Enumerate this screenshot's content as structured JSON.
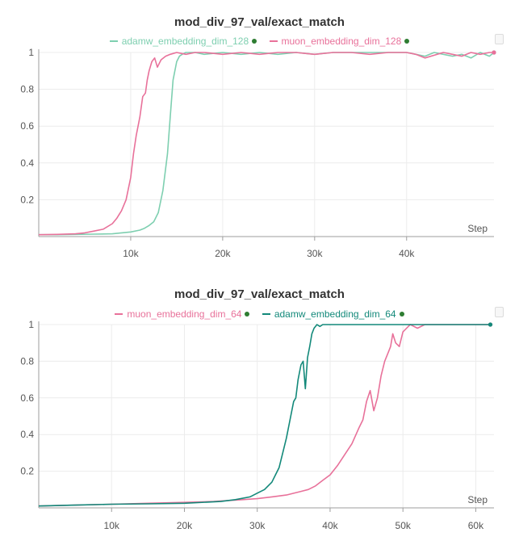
{
  "chart_data": [
    {
      "type": "line",
      "title": "mod_div_97_val/exact_match",
      "xlabel": "Step",
      "ylabel": "",
      "xlim": [
        0,
        49500
      ],
      "ylim": [
        0,
        1
      ],
      "x_ticks": [
        "10k",
        "20k",
        "30k",
        "40k"
      ],
      "y_ticks": [
        "0.2",
        "0.4",
        "0.6",
        "0.8",
        "1"
      ],
      "legend_position": "top-center",
      "series": [
        {
          "name": "adamw_embedding_dim_128",
          "color": "#7ecfb0",
          "x": [
            0,
            2000,
            4000,
            6000,
            8000,
            9000,
            10000,
            11000,
            11500,
            12000,
            12500,
            13000,
            13500,
            14000,
            14300,
            14600,
            15000,
            15300,
            15600,
            16000,
            17000,
            18000,
            20000,
            22000,
            24000,
            26000,
            28000,
            30000,
            32000,
            34000,
            36000,
            38000,
            40000,
            41000,
            42000,
            43000,
            44000,
            45000,
            46000,
            47000,
            48000,
            49000,
            49500
          ],
          "y": [
            0.01,
            0.01,
            0.012,
            0.013,
            0.015,
            0.02,
            0.025,
            0.035,
            0.045,
            0.06,
            0.08,
            0.13,
            0.25,
            0.45,
            0.65,
            0.85,
            0.95,
            0.98,
            0.99,
            1.0,
            1.0,
            0.99,
            1.0,
            0.99,
            1.0,
            0.99,
            1.0,
            0.99,
            1.0,
            1.0,
            1.0,
            1.0,
            1.0,
            0.99,
            0.98,
            1.0,
            0.99,
            0.98,
            0.99,
            0.97,
            1.0,
            0.98,
            1.0
          ]
        },
        {
          "name": "muon_embedding_dim_128",
          "color": "#e8719a",
          "x": [
            0,
            2000,
            4000,
            5000,
            6000,
            7000,
            8000,
            8500,
            9000,
            9500,
            10000,
            10300,
            10600,
            11000,
            11300,
            11600,
            11800,
            12000,
            12300,
            12600,
            12900,
            13300,
            13800,
            14300,
            15000,
            16000,
            17000,
            18000,
            20000,
            22000,
            24000,
            26000,
            28000,
            30000,
            32000,
            34000,
            36000,
            38000,
            40000,
            41000,
            42000,
            44000,
            45000,
            46000,
            47000,
            48000,
            49000,
            49500
          ],
          "y": [
            0.01,
            0.012,
            0.015,
            0.02,
            0.03,
            0.04,
            0.07,
            0.1,
            0.14,
            0.2,
            0.32,
            0.45,
            0.55,
            0.65,
            0.76,
            0.78,
            0.85,
            0.9,
            0.95,
            0.97,
            0.92,
            0.96,
            0.98,
            0.99,
            1.0,
            0.99,
            1.0,
            1.0,
            0.99,
            1.0,
            0.99,
            1.0,
            1.0,
            0.99,
            1.0,
            1.0,
            0.99,
            1.0,
            1.0,
            0.99,
            0.97,
            1.0,
            0.99,
            0.98,
            1.0,
            0.99,
            1.0,
            1.0
          ]
        }
      ]
    },
    {
      "type": "line",
      "title": "mod_div_97_val/exact_match",
      "xlabel": "Step",
      "ylabel": "",
      "xlim": [
        0,
        62500
      ],
      "ylim": [
        0,
        1
      ],
      "x_ticks": [
        "10k",
        "20k",
        "30k",
        "40k",
        "50k",
        "60k"
      ],
      "y_ticks": [
        "0.2",
        "0.4",
        "0.6",
        "0.8",
        "1"
      ],
      "legend_position": "top-center",
      "series": [
        {
          "name": "muon_embedding_dim_64",
          "color": "#e8719a",
          "x": [
            0,
            5000,
            10000,
            15000,
            20000,
            24000,
            28000,
            30000,
            32000,
            34000,
            36000,
            37000,
            38000,
            39000,
            40000,
            41000,
            42000,
            43000,
            44000,
            44500,
            45000,
            45500,
            46000,
            46500,
            47000,
            47500,
            48000,
            48300,
            48600,
            49000,
            49500,
            50000,
            50500,
            51000,
            52000,
            53000,
            54000,
            56000,
            58000,
            60000,
            62000
          ],
          "y": [
            0.01,
            0.015,
            0.02,
            0.025,
            0.03,
            0.035,
            0.045,
            0.05,
            0.06,
            0.07,
            0.09,
            0.1,
            0.12,
            0.15,
            0.18,
            0.23,
            0.29,
            0.35,
            0.44,
            0.48,
            0.58,
            0.64,
            0.53,
            0.6,
            0.72,
            0.8,
            0.85,
            0.88,
            0.95,
            0.9,
            0.88,
            0.96,
            0.98,
            1.0,
            0.98,
            1.0,
            1.0,
            1.0,
            1.0,
            1.0,
            1.0
          ]
        },
        {
          "name": "adamw_embedding_dim_64",
          "color": "#13897a",
          "x": [
            0,
            5000,
            10000,
            15000,
            20000,
            25000,
            27000,
            29000,
            30000,
            31000,
            32000,
            32500,
            33000,
            33500,
            34000,
            34500,
            35000,
            35300,
            35600,
            36000,
            36300,
            36600,
            36900,
            37200,
            37500,
            37800,
            38200,
            38600,
            39000,
            40000,
            45000,
            50000,
            55000,
            60000,
            62000
          ],
          "y": [
            0.01,
            0.015,
            0.02,
            0.022,
            0.025,
            0.035,
            0.045,
            0.06,
            0.08,
            0.1,
            0.14,
            0.18,
            0.22,
            0.3,
            0.38,
            0.48,
            0.58,
            0.6,
            0.7,
            0.78,
            0.8,
            0.65,
            0.82,
            0.88,
            0.95,
            0.98,
            1.0,
            0.99,
            1.0,
            1.0,
            1.0,
            1.0,
            1.0,
            1.0,
            1.0
          ]
        }
      ]
    }
  ]
}
